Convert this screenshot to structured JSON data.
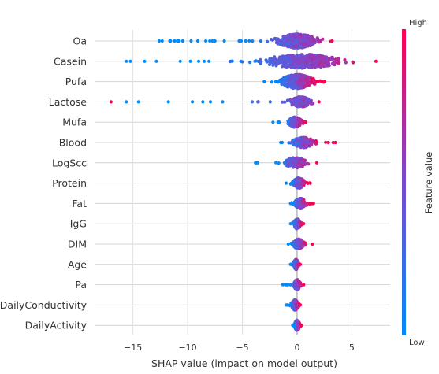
{
  "chart_data": {
    "type": "scatter",
    "subtype": "beeswarm",
    "xlabel": "SHAP value (impact on model output)",
    "xticks": [
      -15,
      -10,
      -5,
      0,
      5
    ],
    "xlim": [
      -18.5,
      8.5
    ],
    "features": [
      "Oa",
      "Casein",
      "Pufa",
      "Lactose",
      "Mufa",
      "Blood",
      "LogScc",
      "Protein",
      "Fat",
      "IgG",
      "DIM",
      "Age",
      "Pa",
      "DailyConductivity",
      "DailyActivity"
    ],
    "feature_ranges": [
      {
        "feature": "Oa",
        "min": -12.6,
        "max": 3.2,
        "core": [
          -2.5,
          2.5
        ]
      },
      {
        "feature": "Casein",
        "min": -15.6,
        "max": 7.2,
        "core": [
          -4,
          5
        ]
      },
      {
        "feature": "Pufa",
        "min": -3.0,
        "max": 2.5,
        "core": [
          -2,
          2
        ]
      },
      {
        "feature": "Lactose",
        "min": -17.0,
        "max": 2.0,
        "core": [
          -1,
          1.6
        ]
      },
      {
        "feature": "Mufa",
        "min": -2.2,
        "max": 0.8,
        "core": [
          -1,
          0.6
        ]
      },
      {
        "feature": "Blood",
        "min": -1.5,
        "max": 3.5,
        "core": [
          -0.8,
          2
        ]
      },
      {
        "feature": "LogScc",
        "min": -3.8,
        "max": 1.8,
        "core": [
          -1.5,
          1.2
        ]
      },
      {
        "feature": "Protein",
        "min": -1.0,
        "max": 1.2,
        "core": [
          -0.6,
          0.9
        ]
      },
      {
        "feature": "Fat",
        "min": -0.6,
        "max": 1.5,
        "core": [
          -0.4,
          1.0
        ]
      },
      {
        "feature": "IgG",
        "min": -0.6,
        "max": 0.6,
        "core": [
          -0.4,
          0.4
        ]
      },
      {
        "feature": "DIM",
        "min": -0.8,
        "max": 1.4,
        "core": [
          -0.5,
          0.8
        ]
      },
      {
        "feature": "Age",
        "min": -0.6,
        "max": 0.3,
        "core": [
          -0.4,
          0.2
        ]
      },
      {
        "feature": "Pa",
        "min": -1.3,
        "max": 0.6,
        "core": [
          -0.4,
          0.4
        ]
      },
      {
        "feature": "DailyConductivity",
        "min": -1.0,
        "max": 0.3,
        "core": [
          -0.6,
          0.2
        ]
      },
      {
        "feature": "DailyActivity",
        "min": -0.4,
        "max": 0.4,
        "core": [
          -0.3,
          0.3
        ]
      }
    ],
    "colorbar": {
      "title": "Feature value",
      "high_label": "High",
      "low_label": "Low",
      "high_color": "#ff0052",
      "low_color": "#008bfb",
      "mid_color": "#7a4ad0"
    },
    "grid": true,
    "zero_line": true
  }
}
